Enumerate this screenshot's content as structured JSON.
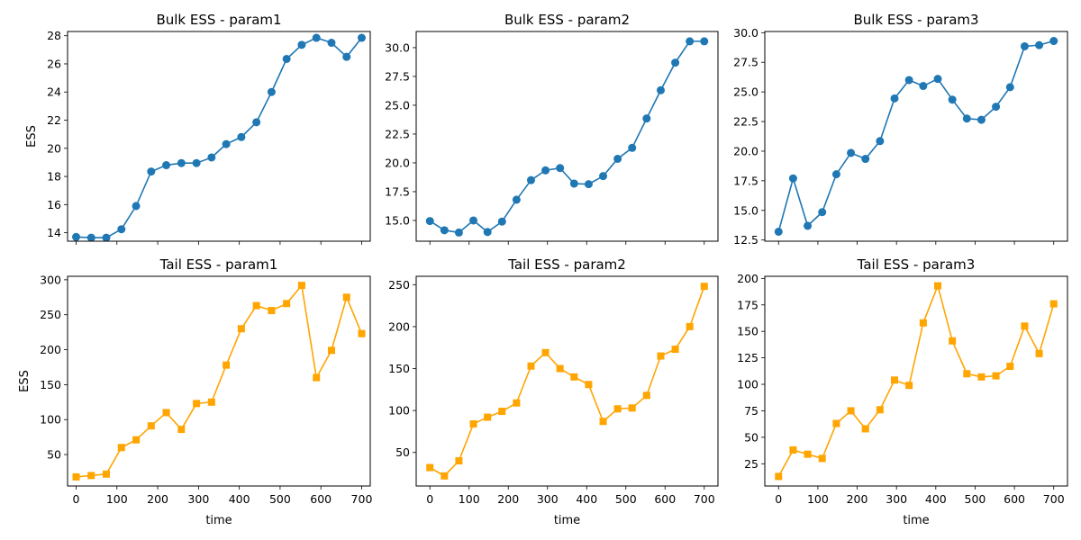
{
  "chart_data": [
    {
      "type": "line",
      "title": "Bulk ESS - param1",
      "xlabel": "",
      "ylabel": "ESS",
      "x": [
        0,
        37,
        74,
        111,
        147,
        184,
        221,
        258,
        295,
        332,
        368,
        405,
        442,
        479,
        516,
        553,
        589,
        626,
        663,
        700
      ],
      "series": [
        {
          "values": [
            13.7,
            13.65,
            13.65,
            14.25,
            15.9,
            18.35,
            18.8,
            18.95,
            18.95,
            19.35,
            20.3,
            20.8,
            21.85,
            24.0,
            26.35,
            27.35,
            27.85,
            27.5,
            26.5,
            27.85
          ]
        }
      ],
      "xlim": [
        -21,
        721
      ],
      "ylim": [
        13.4,
        28.3
      ],
      "yticks": [
        14,
        16,
        18,
        20,
        22,
        24,
        26,
        28
      ],
      "xticks": [
        0,
        100,
        200,
        300,
        400,
        500,
        600,
        700
      ],
      "show_xtick_labels": false,
      "color": "#1f77b4",
      "marker": "circle"
    },
    {
      "type": "line",
      "title": "Bulk ESS - param2",
      "xlabel": "",
      "ylabel": "",
      "x": [
        0,
        37,
        74,
        111,
        147,
        184,
        221,
        258,
        295,
        332,
        368,
        405,
        442,
        479,
        516,
        553,
        589,
        626,
        663,
        700
      ],
      "series": [
        {
          "values": [
            14.95,
            14.15,
            13.95,
            15.0,
            14.0,
            14.9,
            16.8,
            18.5,
            19.35,
            19.55,
            18.2,
            18.15,
            18.85,
            20.35,
            21.3,
            23.85,
            26.3,
            28.7,
            30.55,
            30.55
          ]
        }
      ],
      "xlim": [
        -35,
        735
      ],
      "ylim": [
        13.2,
        31.4
      ],
      "yticks": [
        15.0,
        17.5,
        20.0,
        22.5,
        25.0,
        27.5,
        30.0
      ],
      "ytick_labels": [
        "15.0",
        "17.5",
        "20.0",
        "22.5",
        "25.0",
        "27.5",
        "30.0"
      ],
      "xticks": [
        0,
        100,
        200,
        300,
        400,
        500,
        600,
        700
      ],
      "show_xtick_labels": false,
      "color": "#1f77b4",
      "marker": "circle"
    },
    {
      "type": "line",
      "title": "Bulk ESS - param3",
      "xlabel": "",
      "ylabel": "",
      "x": [
        0,
        37,
        74,
        111,
        147,
        184,
        221,
        258,
        295,
        332,
        368,
        405,
        442,
        479,
        516,
        553,
        589,
        626,
        663,
        700
      ],
      "series": [
        {
          "values": [
            13.2,
            17.7,
            13.7,
            14.85,
            18.05,
            19.85,
            19.35,
            20.85,
            24.45,
            26.0,
            25.5,
            26.1,
            24.35,
            22.75,
            22.65,
            23.75,
            25.4,
            28.85,
            28.95,
            29.3
          ]
        }
      ],
      "xlim": [
        -35,
        735
      ],
      "ylim": [
        12.4,
        30.1
      ],
      "yticks": [
        12.5,
        15.0,
        17.5,
        20.0,
        22.5,
        25.0,
        27.5,
        30.0
      ],
      "ytick_labels": [
        "12.5",
        "15.0",
        "17.5",
        "20.0",
        "22.5",
        "25.0",
        "27.5",
        "30.0"
      ],
      "xticks": [
        0,
        100,
        200,
        300,
        400,
        500,
        600,
        700
      ],
      "show_xtick_labels": false,
      "color": "#1f77b4",
      "marker": "circle"
    },
    {
      "type": "line",
      "title": "Tail ESS - param1",
      "xlabel": "time",
      "ylabel": "ESS",
      "x": [
        0,
        37,
        74,
        111,
        147,
        184,
        221,
        258,
        295,
        332,
        368,
        405,
        442,
        479,
        516,
        553,
        589,
        626,
        663,
        700
      ],
      "series": [
        {
          "values": [
            18,
            20,
            22,
            60,
            71,
            91,
            110,
            86,
            123,
            125,
            178,
            230,
            263,
            256,
            266,
            292,
            160,
            199,
            275,
            223
          ]
        }
      ],
      "xlim": [
        -21,
        721
      ],
      "ylim": [
        5,
        305
      ],
      "yticks": [
        50,
        100,
        150,
        200,
        250,
        300
      ],
      "xticks": [
        0,
        100,
        200,
        300,
        400,
        500,
        600,
        700
      ],
      "show_xtick_labels": true,
      "color": "#ffa500",
      "marker": "square"
    },
    {
      "type": "line",
      "title": "Tail ESS - param2",
      "xlabel": "time",
      "ylabel": "",
      "x": [
        0,
        37,
        74,
        111,
        147,
        184,
        221,
        258,
        295,
        332,
        368,
        405,
        442,
        479,
        516,
        553,
        589,
        626,
        663,
        700
      ],
      "series": [
        {
          "values": [
            32,
            22,
            40,
            84,
            92,
            99,
            109,
            153,
            169,
            150,
            140,
            131,
            87,
            102,
            103,
            118,
            165,
            173,
            200,
            248
          ]
        }
      ],
      "xlim": [
        -35,
        735
      ],
      "ylim": [
        10,
        260
      ],
      "yticks": [
        50,
        100,
        150,
        200,
        250
      ],
      "xticks": [
        0,
        100,
        200,
        300,
        400,
        500,
        600,
        700
      ],
      "show_xtick_labels": true,
      "color": "#ffa500",
      "marker": "square"
    },
    {
      "type": "line",
      "title": "Tail ESS - param3",
      "xlabel": "time",
      "ylabel": "",
      "x": [
        0,
        37,
        74,
        111,
        147,
        184,
        221,
        258,
        295,
        332,
        368,
        405,
        442,
        479,
        516,
        553,
        589,
        626,
        663,
        700
      ],
      "series": [
        {
          "values": [
            13,
            38,
            34,
            30,
            63,
            75,
            58,
            76,
            104,
            99,
            158,
            193,
            141,
            110,
            107,
            108,
            117,
            155,
            129,
            176
          ]
        }
      ],
      "xlim": [
        -35,
        735
      ],
      "ylim": [
        4,
        202
      ],
      "yticks": [
        25,
        50,
        75,
        100,
        125,
        150,
        175,
        200
      ],
      "xticks": [
        0,
        100,
        200,
        300,
        400,
        500,
        600,
        700
      ],
      "show_xtick_labels": true,
      "color": "#ffa500",
      "marker": "square"
    }
  ]
}
